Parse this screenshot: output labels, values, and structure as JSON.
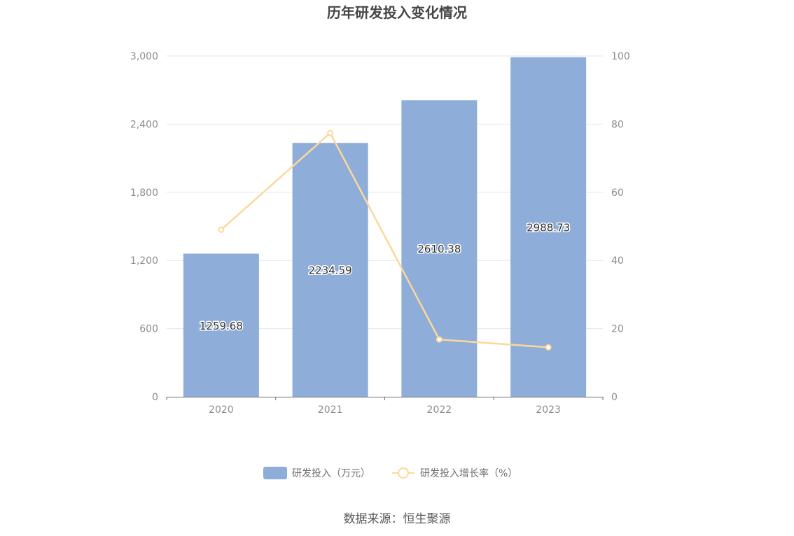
{
  "chart_data": {
    "type": "bar",
    "title": "历年研发投入变化情况",
    "categories": [
      "2020",
      "2021",
      "2022",
      "2023"
    ],
    "series": [
      {
        "name": "研发投入（万元）",
        "type": "bar",
        "axis": "left",
        "values": [
          1259.68,
          2234.59,
          2610.38,
          2988.73
        ],
        "labels": [
          "1259.68",
          "2234.59",
          "2610.38",
          "2988.73"
        ],
        "color": "#8eadd9"
      },
      {
        "name": "研发投入增长率（%）",
        "type": "line",
        "axis": "right",
        "values": [
          49.0,
          77.4,
          16.8,
          14.5
        ],
        "color": "#fcd89a"
      }
    ],
    "y_left": {
      "min": 0,
      "max": 3000,
      "ticks": [
        0,
        600,
        1200,
        1800,
        2400,
        3000
      ],
      "tick_labels": [
        "0",
        "600",
        "1,200",
        "1,800",
        "2,400",
        "3,000"
      ]
    },
    "y_right": {
      "min": 0,
      "max": 100,
      "ticks": [
        0,
        20,
        40,
        60,
        80,
        100
      ],
      "tick_labels": [
        "0",
        "20",
        "40",
        "60",
        "80",
        "100"
      ]
    },
    "grid": true,
    "legend": "bottom-center"
  },
  "source": "数据来源：恒生聚源"
}
